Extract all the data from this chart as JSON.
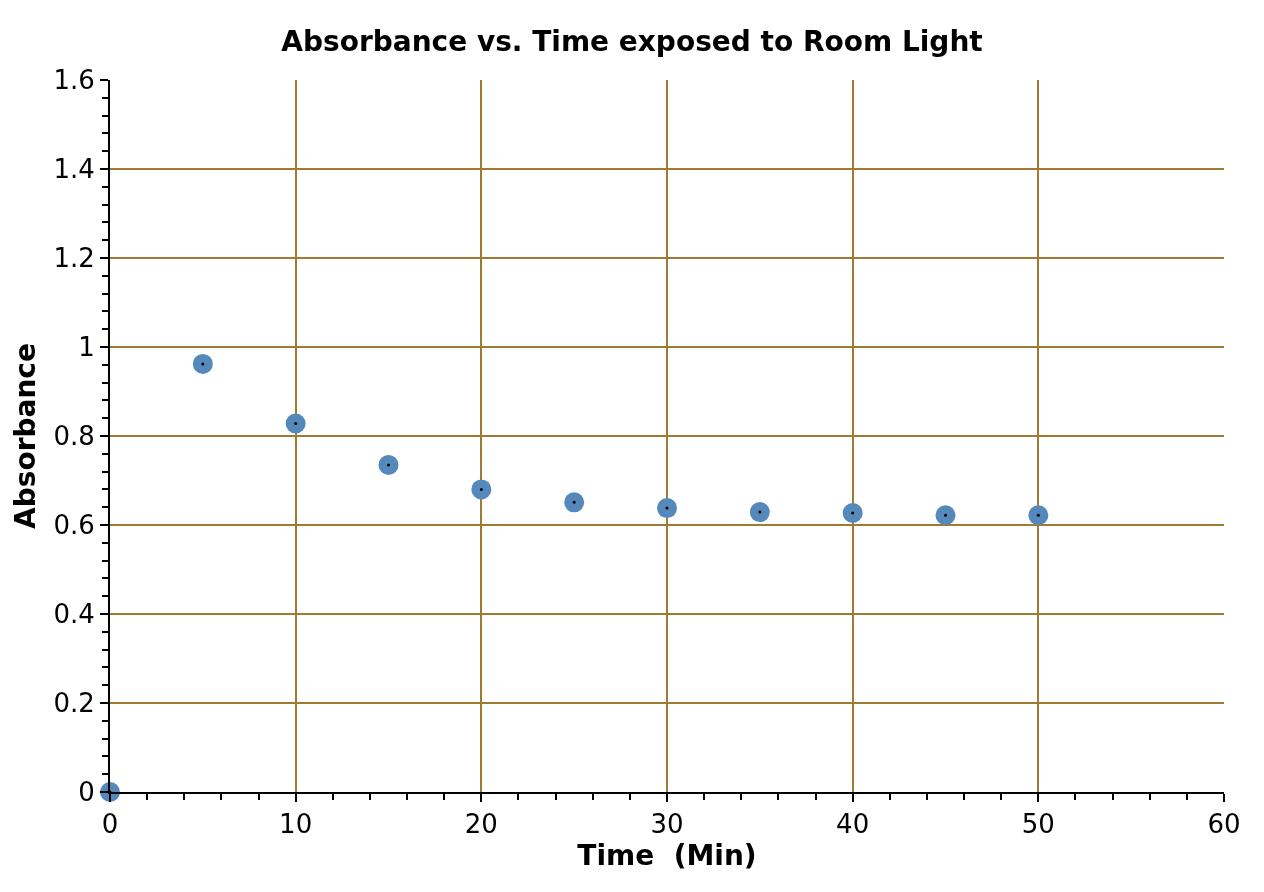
{
  "chart_data": {
    "type": "scatter",
    "title": "Absorbance vs. Time exposed to Room Light",
    "xlabel": "Time  (Min)",
    "ylabel": "Absorbance",
    "x": [
      0,
      5,
      10,
      15,
      20,
      25,
      30,
      35,
      40,
      45,
      50
    ],
    "series": [
      {
        "color": "#5589bb",
        "values": [
          0,
          0.962,
          0.828,
          0.735,
          0.68,
          0.651,
          0.638,
          0.629,
          0.627,
          0.622,
          0.622
        ]
      }
    ],
    "xlim": [
      0,
      60
    ],
    "xticks": [
      0,
      10,
      20,
      30,
      40,
      50,
      60
    ],
    "ylim": [
      0,
      1.6
    ],
    "yticks": [
      0,
      0.2,
      0.4,
      0.6,
      0.8,
      1,
      1.2,
      1.4,
      1.6
    ],
    "grid": true,
    "marker": "circle"
  }
}
